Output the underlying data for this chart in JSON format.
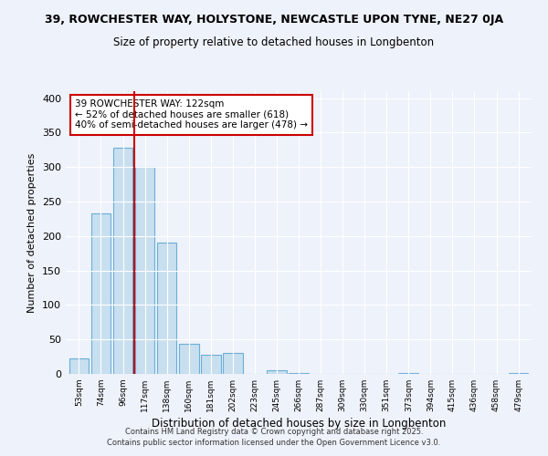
{
  "title_line1": "39, ROWCHESTER WAY, HOLYSTONE, NEWCASTLE UPON TYNE, NE27 0JA",
  "title_line2": "Size of property relative to detached houses in Longbenton",
  "xlabel": "Distribution of detached houses by size in Longbenton",
  "ylabel": "Number of detached properties",
  "categories": [
    "53sqm",
    "74sqm",
    "96sqm",
    "117sqm",
    "138sqm",
    "160sqm",
    "181sqm",
    "202sqm",
    "223sqm",
    "245sqm",
    "266sqm",
    "287sqm",
    "309sqm",
    "330sqm",
    "351sqm",
    "373sqm",
    "394sqm",
    "415sqm",
    "436sqm",
    "458sqm",
    "479sqm"
  ],
  "values": [
    22,
    233,
    328,
    300,
    191,
    44,
    28,
    30,
    0,
    5,
    1,
    0,
    0,
    0,
    0,
    1,
    0,
    0,
    0,
    0,
    1
  ],
  "bar_color": "#c8dff0",
  "bar_edge_color": "#6aaed6",
  "vline_x_index": 3,
  "vline_color": "#cc0000",
  "annotation_title": "39 ROWCHESTER WAY: 122sqm",
  "annotation_line2": "← 52% of detached houses are smaller (618)",
  "annotation_line3": "40% of semi-detached houses are larger (478) →",
  "annotation_box_color": "#ffffff",
  "annotation_box_edge": "#cc0000",
  "footnote1": "Contains HM Land Registry data © Crown copyright and database right 2025.",
  "footnote2": "Contains public sector information licensed under the Open Government Licence v3.0.",
  "ylim": [
    0,
    410
  ],
  "yticks": [
    0,
    50,
    100,
    150,
    200,
    250,
    300,
    350,
    400
  ],
  "background_color": "#eef2fa"
}
